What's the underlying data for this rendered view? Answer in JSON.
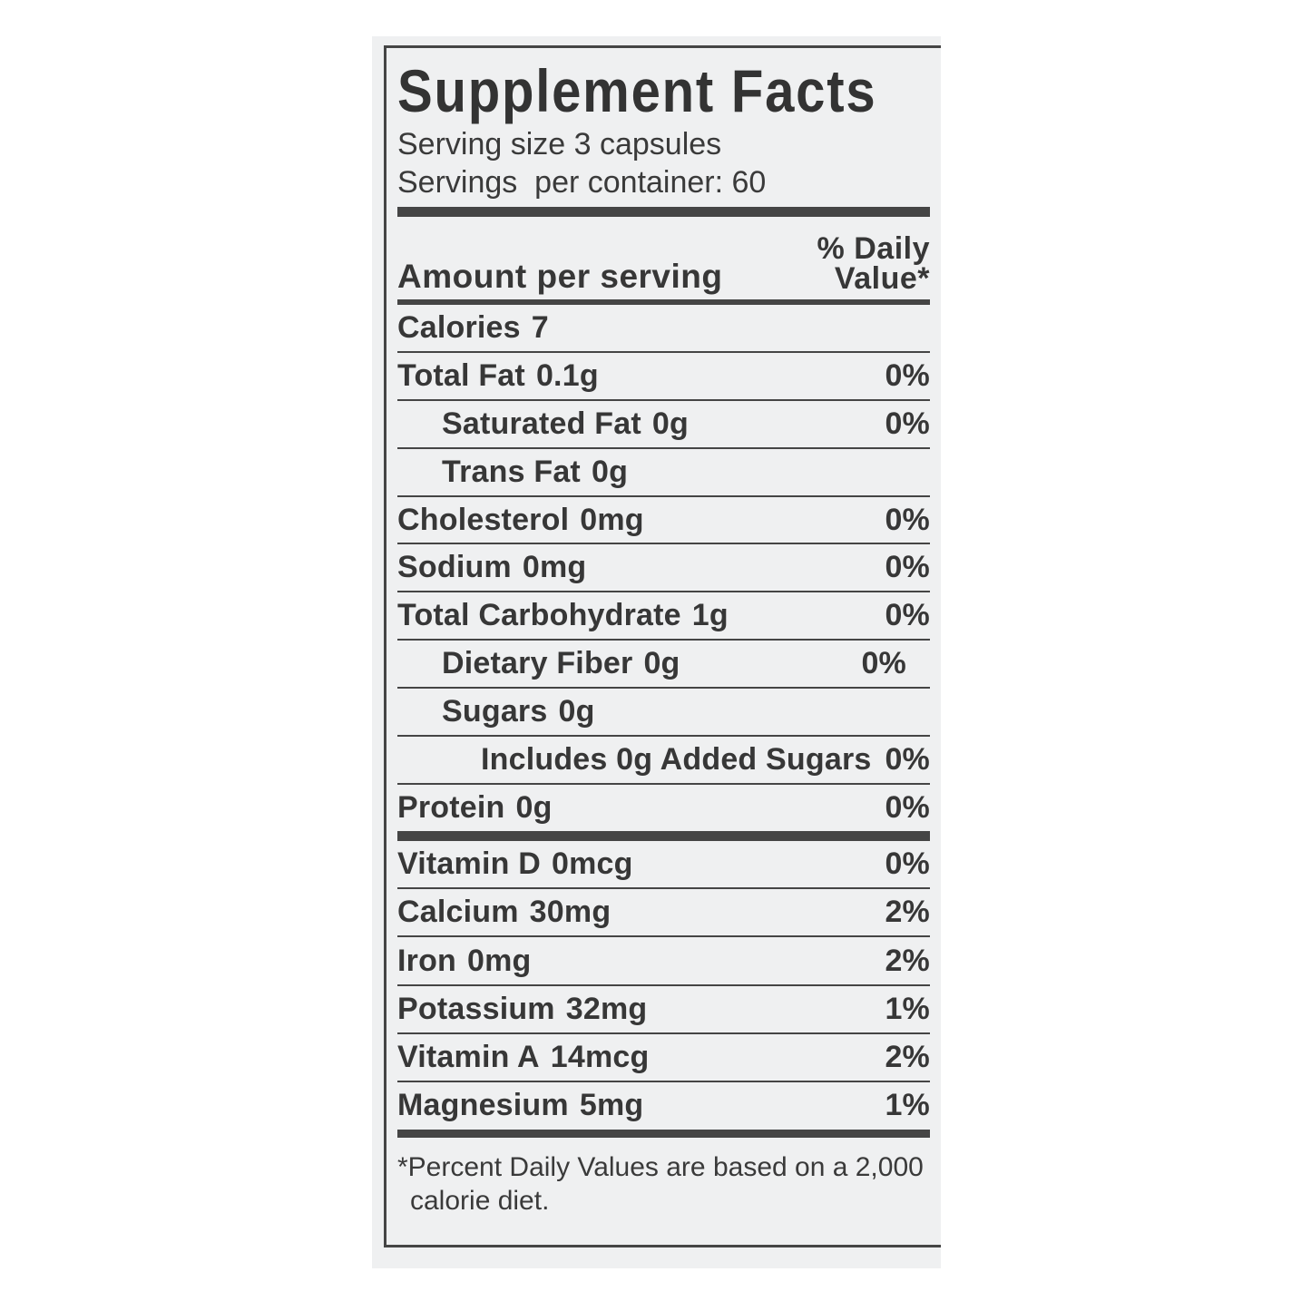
{
  "label": {
    "title": "Supplement Facts",
    "serving_size": "Serving size 3 capsules",
    "servings_per_container": "Servings  per container: 60",
    "amount_header": "Amount per serving",
    "dv_header_line1": "% Daily",
    "dv_header_line2": "Value*",
    "main_rows": [
      {
        "name": "Calories",
        "amount": "7",
        "dv": "",
        "indent": 0
      },
      {
        "name": "Total Fat",
        "amount": "0.1g",
        "dv": "0%",
        "indent": 0
      },
      {
        "name": "Saturated Fat",
        "amount": "0g",
        "dv": "0%",
        "indent": 1
      },
      {
        "name": "Trans Fat",
        "amount": "0g",
        "dv": "",
        "indent": 1
      },
      {
        "name": "Cholesterol",
        "amount": "0mg",
        "dv": "0%",
        "indent": 0
      },
      {
        "name": "Sodium",
        "amount": "0mg",
        "dv": "0%",
        "indent": 0
      },
      {
        "name": "Total Carbohydrate",
        "amount": "1g",
        "dv": "0%",
        "indent": 0
      },
      {
        "name": "Dietary Fiber",
        "amount": "0g",
        "dv": "0%",
        "indent": 1,
        "dv_inset": true
      },
      {
        "name": "Sugars",
        "amount": "0g",
        "dv": "",
        "indent": 1
      },
      {
        "name": "Includes 0g Added Sugars",
        "amount": "",
        "dv": "0%",
        "indent": 2
      },
      {
        "name": "Protein",
        "amount": "0g",
        "dv": "0%",
        "indent": 0
      }
    ],
    "vitamin_rows": [
      {
        "name": "Vitamin D",
        "amount": "0mcg",
        "dv": "0%",
        "indent": 0
      },
      {
        "name": "Calcium",
        "amount": "30mg",
        "dv": "2%",
        "indent": 0
      },
      {
        "name": "Iron",
        "amount": "0mg",
        "dv": "2%",
        "indent": 0
      },
      {
        "name": "Potassium",
        "amount": "32mg",
        "dv": "1%",
        "indent": 0
      },
      {
        "name": "Vitamin A",
        "amount": "14mcg",
        "dv": "2%",
        "indent": 0
      },
      {
        "name": "Magnesium",
        "amount": "5mg",
        "dv": "1%",
        "indent": 0
      }
    ],
    "footnote_line1": "*Percent Daily Values are based on a 2,000",
    "footnote_line2": "calorie diet."
  },
  "colors": {
    "label_background": "#eff0f1",
    "ink": "#373737",
    "rule": "#454545",
    "page_background": "#ffffff"
  }
}
